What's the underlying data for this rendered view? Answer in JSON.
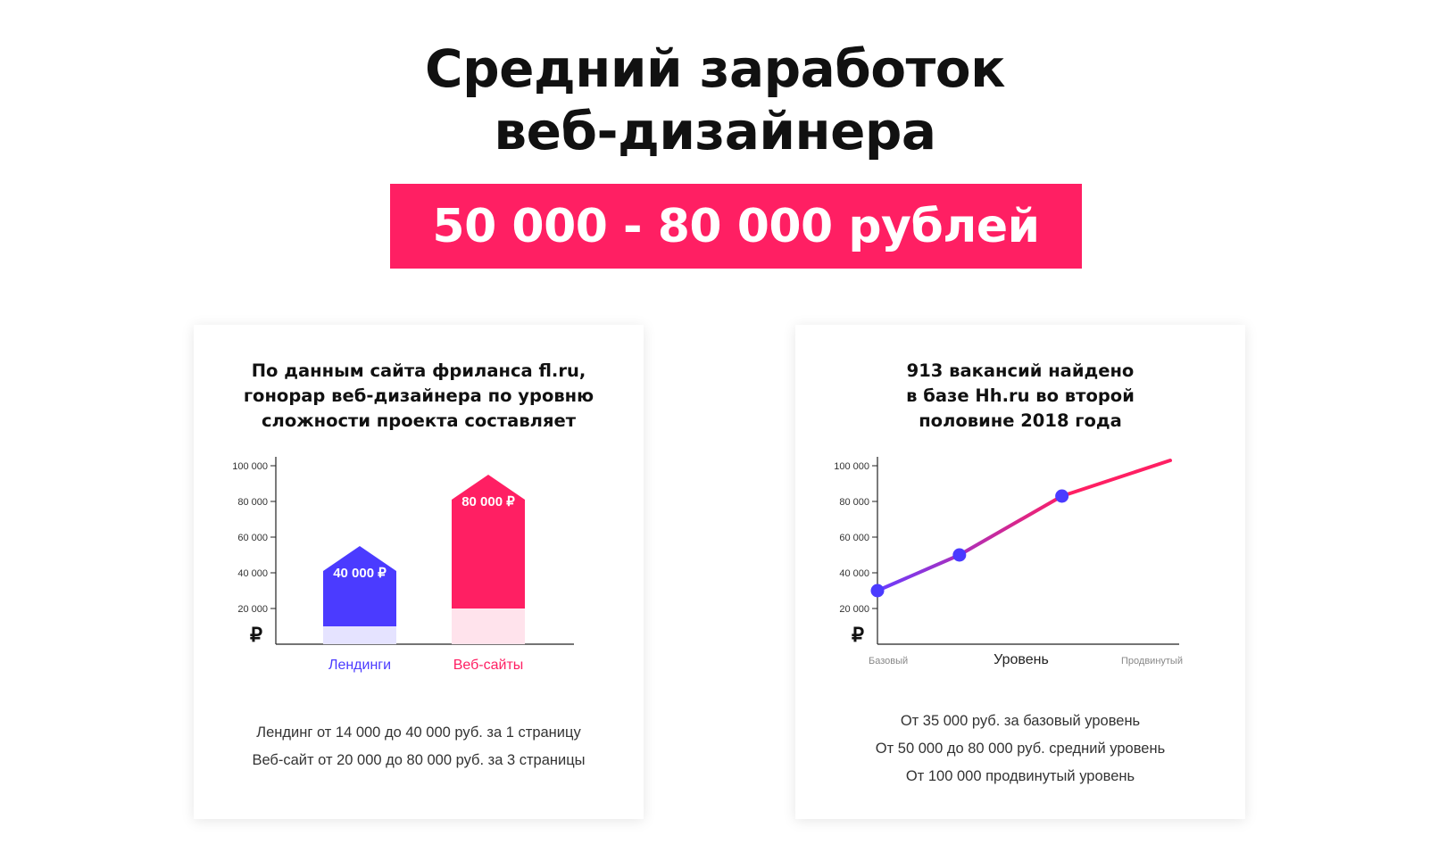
{
  "hero": {
    "title_line1": "Средний заработок",
    "title_line2": "веб-дизайнера",
    "salary": "50 000 - 80 000 рублей"
  },
  "colors": {
    "accent_pink": "#ff1f63",
    "accent_blue": "#4b3bff",
    "light_pink": "#ffe3ec",
    "light_blue": "#e5e3ff"
  },
  "left_card": {
    "title_lines": [
      "По данным сайта фриланса fl.ru,",
      "гонорар веб-дизайнера по уровню",
      "сложности проекта составляет"
    ],
    "notes": [
      "Лендинг от 14 000 до 40 000 руб. за 1 страницу",
      "Веб-сайт от 20 000 до 80 000 руб. за 3 страницы"
    ]
  },
  "right_card": {
    "title_lines": [
      "913 вакансий найдено",
      "в базе Hh.ru во второй",
      "половине 2018 года"
    ],
    "notes": [
      "От 35 000 руб. за базовый уровень",
      "От 50 000 до 80 000 руб. средний уровень",
      "От 100 000 продвинутый уровень"
    ]
  },
  "chart_data": [
    {
      "type": "bar",
      "currency_symbol": "₽",
      "yticks": [
        "100 000",
        "80 000",
        "60 000",
        "40 000",
        "20 000"
      ],
      "ytick_values": [
        100000,
        80000,
        60000,
        40000,
        20000
      ],
      "ylim": [
        0,
        100000
      ],
      "categories": [
        "Лендинги",
        "Веб-сайты"
      ],
      "ranges": [
        [
          10000,
          55000
        ],
        [
          20000,
          95000
        ]
      ],
      "data_labels": [
        "40 000 ₽",
        "80 000 ₽"
      ],
      "label_values": [
        40000,
        80000
      ],
      "bar_colors": [
        "#4b3bff",
        "#ff1f63"
      ],
      "base_colors": [
        "#e5e3ff",
        "#ffe3ec"
      ],
      "grid": false
    },
    {
      "type": "line",
      "currency_symbol": "₽",
      "yticks": [
        "100 000",
        "80 000",
        "60 000",
        "40 000",
        "20 000"
      ],
      "ytick_values": [
        100000,
        80000,
        60000,
        40000,
        20000
      ],
      "ylim": [
        0,
        100000
      ],
      "xlabel": "Уровень",
      "x_start_label": "Базовый",
      "x_end_label": "Продвинутый",
      "x": [
        0,
        0.28,
        0.63,
        1.0
      ],
      "values": [
        30000,
        50000,
        83000,
        103000
      ],
      "markers": [
        true,
        true,
        true,
        false
      ],
      "gradient": [
        "#6a3cff",
        "#ff1f63"
      ],
      "marker_color": "#4b3bff",
      "grid": false
    }
  ]
}
